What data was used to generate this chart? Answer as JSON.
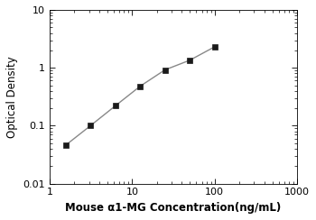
{
  "x_data": [
    1.5625,
    3.125,
    6.25,
    12.5,
    25,
    50,
    100
  ],
  "y_data": [
    0.046,
    0.1,
    0.22,
    0.48,
    0.92,
    1.35,
    2.3
  ],
  "xlabel": "Mouse α1-MG Concentration(ng/mL)",
  "ylabel": "Optical Density",
  "xlim": [
    1,
    1000
  ],
  "ylim": [
    0.01,
    10
  ],
  "xticks": [
    1,
    10,
    100,
    1000
  ],
  "xticklabels": [
    "1",
    "10",
    "100",
    "1000"
  ],
  "yticks": [
    0.01,
    0.1,
    1,
    10
  ],
  "yticklabels": [
    "0.01",
    "0.1",
    "1",
    "10"
  ],
  "marker": "s",
  "marker_color": "#1a1a1a",
  "line_color": "#888888",
  "marker_size": 4.5,
  "line_width": 1.0,
  "background_color": "#ffffff",
  "xlabel_fontsize": 8.5,
  "ylabel_fontsize": 8.5,
  "tick_fontsize": 8
}
